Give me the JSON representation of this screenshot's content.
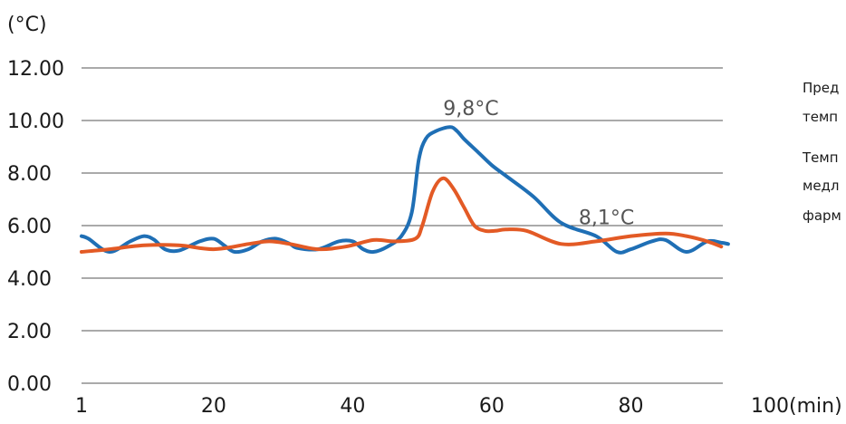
{
  "chart_data": {
    "type": "line",
    "yunit": "(°C)",
    "xunit": "(min)",
    "ylim": [
      0,
      12
    ],
    "yticks": [
      "0.00",
      "2.00",
      "4.00",
      "6.00",
      "8.00",
      "10.00",
      "12.00"
    ],
    "xlim": [
      1,
      100
    ],
    "xticks": [
      {
        "value": 1,
        "label": "1"
      },
      {
        "value": 20,
        "label": "20"
      },
      {
        "value": 40,
        "label": "40"
      },
      {
        "value": 60,
        "label": "60"
      },
      {
        "value": 80,
        "label": "80"
      },
      {
        "value": 100,
        "label": "100"
      }
    ],
    "grid": true,
    "series": [
      {
        "color": "#1f6fb5",
        "x": [
          1,
          2,
          5,
          8,
          10,
          11.5,
          13,
          15,
          18,
          20,
          21.5,
          23,
          25,
          27,
          29,
          31,
          32,
          35,
          38,
          40,
          41.5,
          43,
          45,
          47,
          48.5,
          49.5,
          50.5,
          52,
          54,
          55,
          56,
          58,
          60,
          62,
          66,
          70,
          75,
          78,
          80,
          83,
          85,
          88,
          91,
          93,
          94
        ],
        "values": [
          5.6,
          5.5,
          5.0,
          5.4,
          5.6,
          5.45,
          5.1,
          5.05,
          5.4,
          5.5,
          5.25,
          5.0,
          5.1,
          5.4,
          5.5,
          5.3,
          5.15,
          5.1,
          5.4,
          5.4,
          5.1,
          5.0,
          5.2,
          5.6,
          6.5,
          8.5,
          9.3,
          9.6,
          9.75,
          9.6,
          9.3,
          8.8,
          8.3,
          7.9,
          7.1,
          6.1,
          5.6,
          5.0,
          5.1,
          5.4,
          5.45,
          5.0,
          5.4,
          5.35,
          5.3
        ]
      },
      {
        "color": "#e35a25",
        "x": [
          1,
          5,
          10,
          15,
          20,
          25,
          28,
          31,
          35,
          39,
          43,
          46,
          49,
          50,
          51.5,
          53,
          54.5,
          56,
          57.5,
          59,
          60.5,
          62,
          65,
          70,
          75,
          80,
          85,
          88,
          91,
          93
        ],
        "values": [
          5.0,
          5.1,
          5.25,
          5.25,
          5.1,
          5.3,
          5.4,
          5.3,
          5.1,
          5.2,
          5.45,
          5.4,
          5.5,
          6.0,
          7.3,
          7.8,
          7.4,
          6.7,
          6.0,
          5.8,
          5.8,
          5.85,
          5.8,
          5.3,
          5.4,
          5.6,
          5.7,
          5.6,
          5.4,
          5.2
        ]
      }
    ],
    "annotations": [
      {
        "text": "9,8°C",
        "x": 57,
        "y": 10.2
      },
      {
        "text": "8,1°C",
        "x": 76.5,
        "y": 6.05
      }
    ]
  },
  "side_text": {
    "line1": "Пред",
    "line2": "темп",
    "line3": "Темп",
    "line4": "медл",
    "line5": "фарм"
  }
}
